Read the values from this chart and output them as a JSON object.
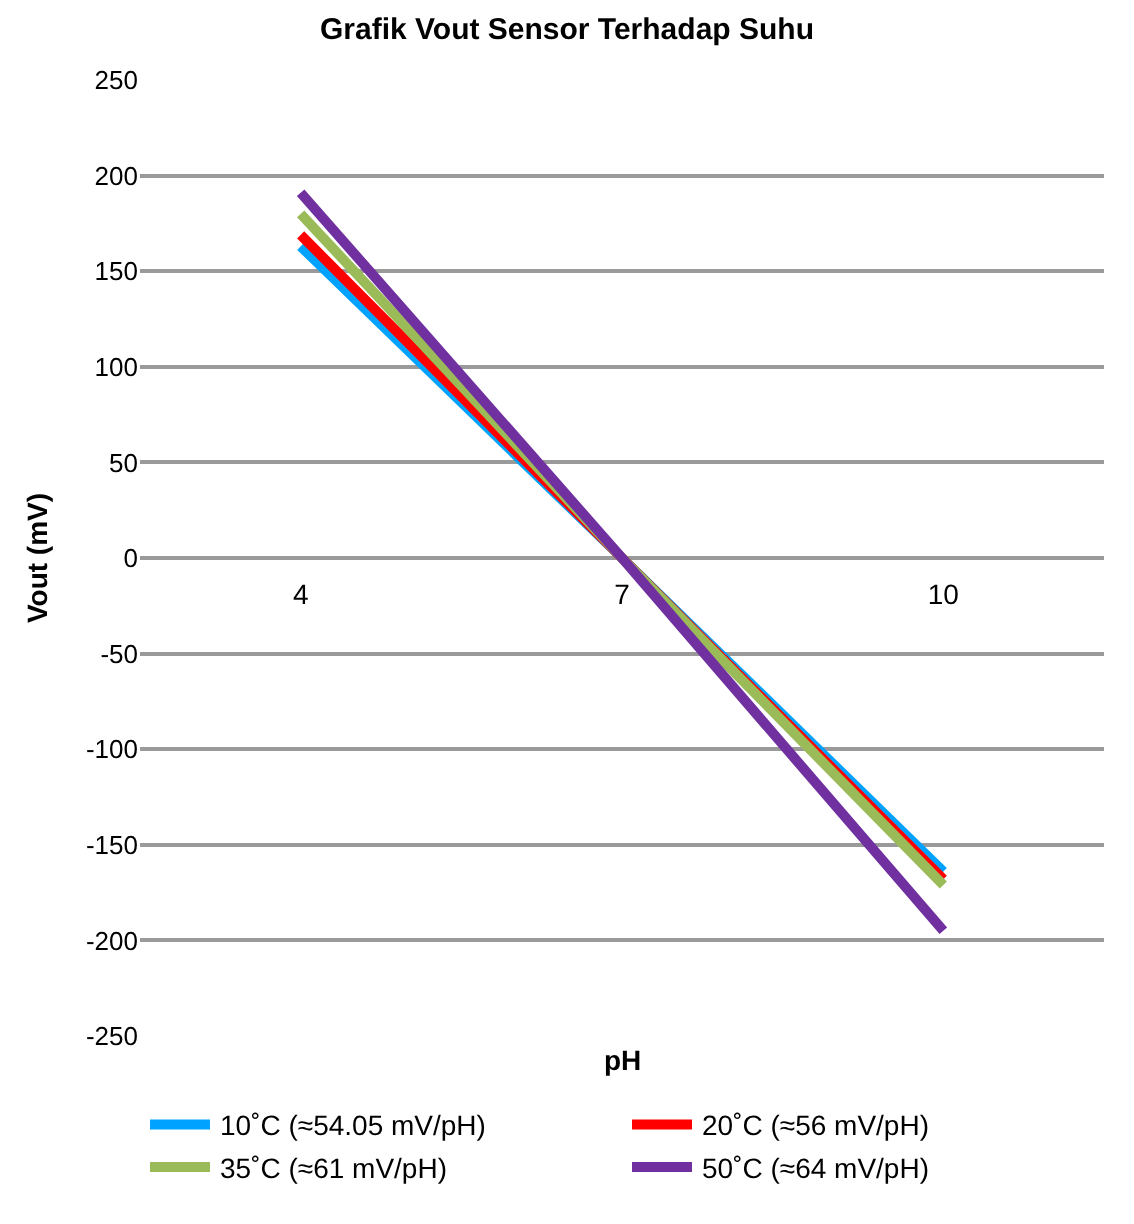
{
  "chart_data": {
    "type": "line",
    "title": "Grafik Vout Sensor Terhadap Suhu",
    "xlabel": "pH",
    "ylabel": "Vout (mV)",
    "categories": [
      "4",
      "7",
      "10"
    ],
    "series": [
      {
        "name": "10˚C (≈54.05 mV/pH)",
        "color": "#00a2ff",
        "values": [
          163,
          0,
          -164
        ]
      },
      {
        "name": "20˚C (≈56 mV/pH)",
        "color": "#ff0000",
        "values": [
          169,
          0,
          -168
        ]
      },
      {
        "name": "35˚C (≈61 mV/pH)",
        "color": "#9bbb59",
        "values": [
          180,
          0,
          -171
        ]
      },
      {
        "name": "50˚C (≈64 mV/pH)",
        "color": "#7030a0",
        "values": [
          191,
          0,
          -195
        ]
      }
    ],
    "ylim": [
      -250,
      250
    ],
    "yticks": [
      -250,
      -200,
      -150,
      -100,
      -50,
      0,
      50,
      100,
      150,
      200,
      250
    ],
    "grid": "y",
    "legend": "bottom",
    "marker": "none",
    "line_style": "solid"
  }
}
